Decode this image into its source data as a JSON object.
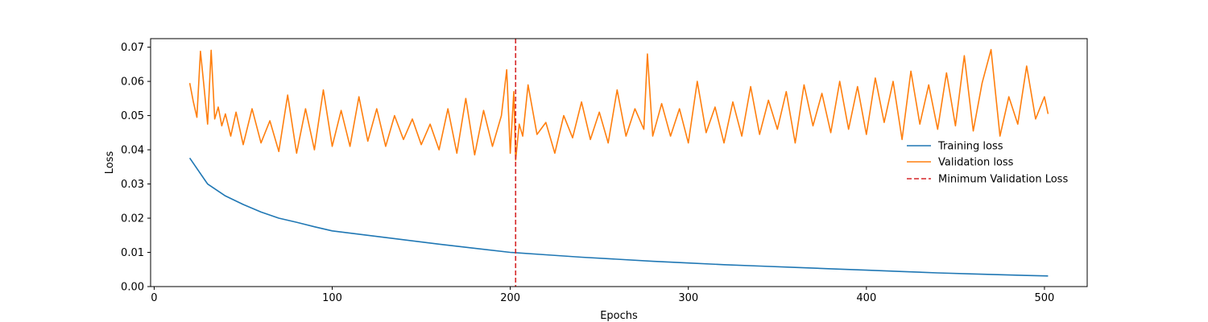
{
  "chart_data": {
    "type": "line",
    "title": "",
    "xlabel": "Epochs",
    "ylabel": "Loss",
    "xlim": [
      -2,
      524
    ],
    "ylim": [
      0,
      0.0725
    ],
    "xticks": [
      0,
      100,
      200,
      300,
      400,
      500
    ],
    "xtick_labels": [
      "0",
      "100",
      "200",
      "300",
      "400",
      "500"
    ],
    "yticks": [
      0,
      0.01,
      0.02,
      0.03,
      0.04,
      0.05,
      0.06,
      0.07
    ],
    "ytick_labels": [
      "0.00",
      "0.01",
      "0.02",
      "0.03",
      "0.04",
      "0.05",
      "0.06",
      "0.07"
    ],
    "grid": false,
    "legend_position": "center-right",
    "series": [
      {
        "name": "Training loss",
        "color": "#1f77b4",
        "x": [
          20,
          30,
          40,
          50,
          60,
          70,
          80,
          90,
          100,
          120,
          140,
          160,
          180,
          200,
          220,
          240,
          260,
          280,
          300,
          320,
          340,
          360,
          380,
          400,
          420,
          440,
          460,
          480,
          502
        ],
        "y": [
          0.0376,
          0.03,
          0.0265,
          0.024,
          0.0218,
          0.02,
          0.0188,
          0.0175,
          0.0163,
          0.015,
          0.0137,
          0.0124,
          0.0112,
          0.01,
          0.0093,
          0.0086,
          0.008,
          0.0074,
          0.0069,
          0.0064,
          0.006,
          0.0056,
          0.0052,
          0.0048,
          0.0044,
          0.004,
          0.0037,
          0.0034,
          0.0031
        ]
      },
      {
        "name": "Validation loss",
        "color": "#ff7f0e",
        "x": [
          20,
          22,
          24,
          26,
          28,
          30,
          32,
          34,
          36,
          38,
          40,
          43,
          46,
          50,
          55,
          60,
          65,
          70,
          75,
          80,
          85,
          90,
          95,
          100,
          105,
          110,
          115,
          120,
          125,
          130,
          135,
          140,
          145,
          150,
          155,
          160,
          165,
          170,
          175,
          180,
          185,
          190,
          195,
          198,
          200,
          202,
          203,
          205,
          207,
          210,
          215,
          220,
          225,
          230,
          235,
          240,
          245,
          250,
          255,
          260,
          265,
          270,
          275,
          277,
          280,
          285,
          290,
          295,
          300,
          305,
          310,
          315,
          320,
          325,
          330,
          335,
          340,
          345,
          350,
          355,
          360,
          365,
          370,
          375,
          380,
          385,
          390,
          395,
          400,
          405,
          410,
          415,
          420,
          425,
          430,
          435,
          440,
          445,
          450,
          455,
          460,
          465,
          470,
          475,
          480,
          485,
          490,
          495,
          500,
          502
        ],
        "y": [
          0.0595,
          0.054,
          0.0495,
          0.0688,
          0.0585,
          0.0475,
          0.0691,
          0.049,
          0.0525,
          0.047,
          0.0505,
          0.044,
          0.051,
          0.0415,
          0.052,
          0.042,
          0.0485,
          0.0395,
          0.056,
          0.039,
          0.052,
          0.04,
          0.0575,
          0.041,
          0.0515,
          0.041,
          0.0555,
          0.0425,
          0.052,
          0.041,
          0.05,
          0.043,
          0.049,
          0.0415,
          0.0475,
          0.04,
          0.052,
          0.039,
          0.055,
          0.0385,
          0.0515,
          0.041,
          0.05,
          0.0634,
          0.039,
          0.057,
          0.037,
          0.0475,
          0.044,
          0.059,
          0.0445,
          0.048,
          0.039,
          0.05,
          0.0435,
          0.054,
          0.043,
          0.051,
          0.042,
          0.0575,
          0.044,
          0.052,
          0.046,
          0.068,
          0.044,
          0.0535,
          0.044,
          0.052,
          0.042,
          0.06,
          0.045,
          0.0525,
          0.042,
          0.054,
          0.044,
          0.0585,
          0.0445,
          0.0545,
          0.046,
          0.057,
          0.042,
          0.059,
          0.047,
          0.0565,
          0.045,
          0.06,
          0.046,
          0.0585,
          0.0445,
          0.061,
          0.048,
          0.06,
          0.043,
          0.063,
          0.0475,
          0.059,
          0.046,
          0.0625,
          0.047,
          0.0675,
          0.0455,
          0.0595,
          0.0693,
          0.044,
          0.0555,
          0.0475,
          0.0645,
          0.049,
          0.0555,
          0.0505
        ]
      }
    ],
    "vlines": [
      {
        "name": "Minimum Validation Loss",
        "x": 203,
        "color": "#d62728",
        "style": "dashed"
      }
    ]
  }
}
